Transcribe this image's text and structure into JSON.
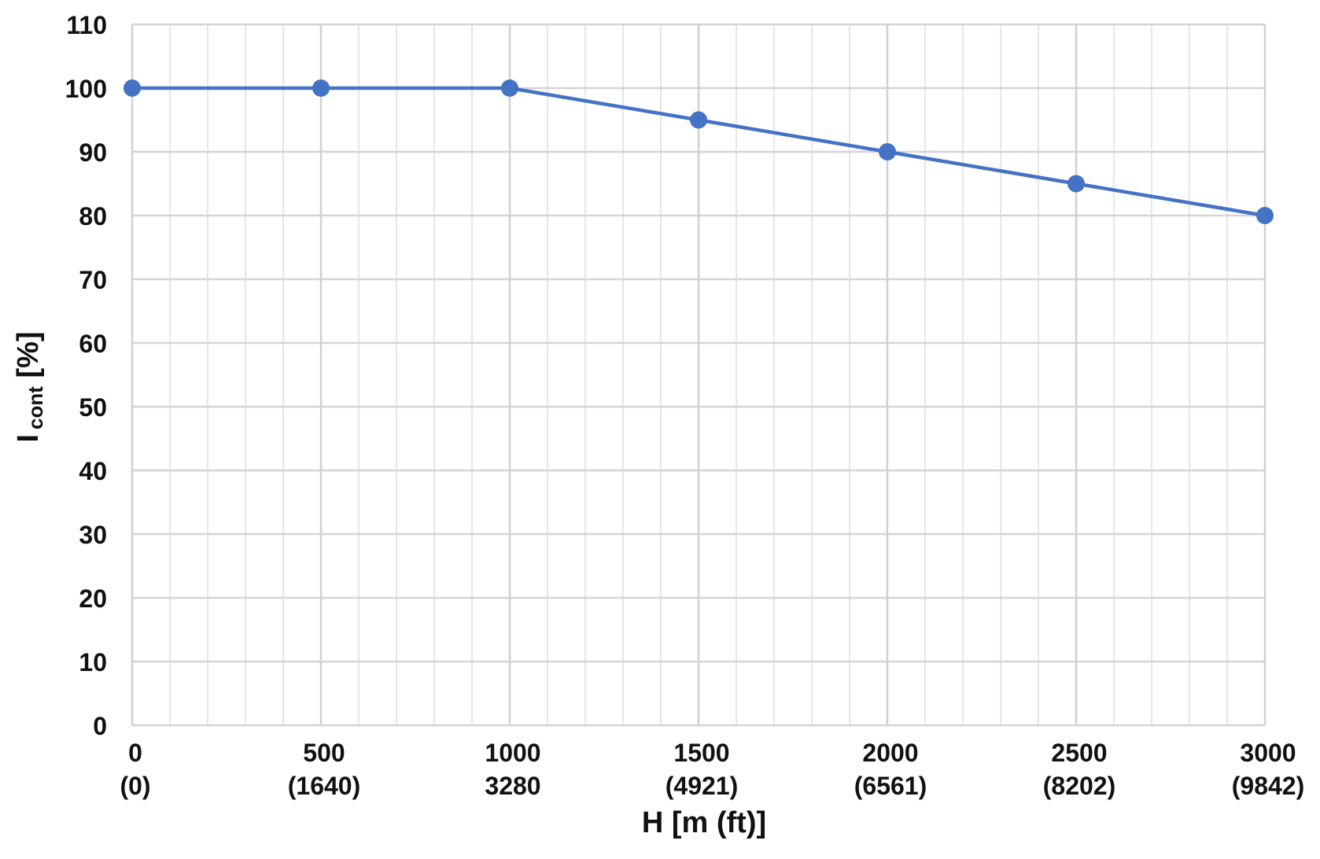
{
  "chart_data": {
    "type": "line",
    "x": [
      0,
      500,
      1000,
      1500,
      2000,
      2500,
      3000
    ],
    "x_tick_labels": [
      {
        "value": 0,
        "line1": "0",
        "line2": "(0)"
      },
      {
        "value": 500,
        "line1": "500",
        "line2": "(1640)"
      },
      {
        "value": 1000,
        "line1": "1000",
        "line2": "3280"
      },
      {
        "value": 1500,
        "line1": "1500",
        "line2": "(4921)"
      },
      {
        "value": 2000,
        "line1": "2000",
        "line2": "(6561)"
      },
      {
        "value": 2500,
        "line1": "2500",
        "line2": "(8202)"
      },
      {
        "value": 3000,
        "line1": "3000",
        "line2": "(9842)"
      }
    ],
    "series": [
      {
        "values": [
          100,
          100,
          100,
          95,
          90,
          85,
          80
        ],
        "color": "#4472C4"
      }
    ],
    "y_ticks": [
      0,
      10,
      20,
      30,
      40,
      50,
      60,
      70,
      80,
      90,
      100,
      110
    ],
    "xlim": [
      0,
      3000
    ],
    "ylim": [
      0,
      110
    ],
    "xlabel": "H [m (ft)]",
    "ylabel": {
      "main": "I",
      "subscript": "cont",
      "suffix": " [%]"
    },
    "grid": true,
    "minor_grid": true
  }
}
